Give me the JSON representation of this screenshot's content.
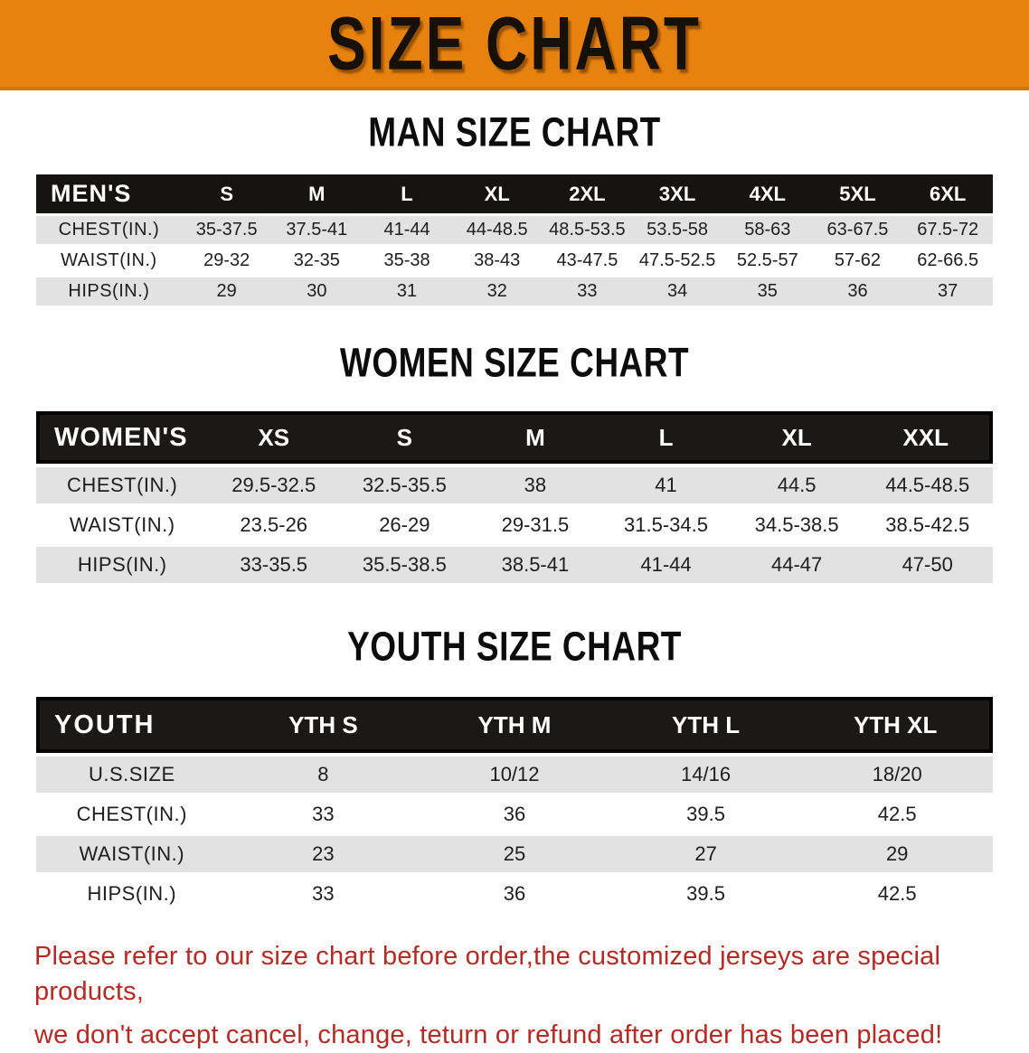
{
  "banner": {
    "title": "SIZE CHART"
  },
  "sections": {
    "men": {
      "heading": "MAN SIZE CHART",
      "table": {
        "header": [
          "MEN'S",
          "S",
          "M",
          "L",
          "XL",
          "2XL",
          "3XL",
          "4XL",
          "5XL",
          "6XL"
        ],
        "rows": [
          [
            "CHEST(IN.)",
            "35-37.5",
            "37.5-41",
            "41-44",
            "44-48.5",
            "48.5-53.5",
            "53.5-58",
            "58-63",
            "63-67.5",
            "67.5-72"
          ],
          [
            "WAIST(IN.)",
            "29-32",
            "32-35",
            "35-38",
            "38-43",
            "43-47.5",
            "47.5-52.5",
            "52.5-57",
            "57-62",
            "62-66.5"
          ],
          [
            "HIPS(IN.)",
            "29",
            "30",
            "31",
            "32",
            "33",
            "34",
            "35",
            "36",
            "37"
          ]
        ]
      }
    },
    "women": {
      "heading": "WOMEN SIZE CHART",
      "table": {
        "header": [
          "WOMEN'S",
          "XS",
          "S",
          "M",
          "L",
          "XL",
          "XXL"
        ],
        "rows": [
          [
            "CHEST(IN.)",
            "29.5-32.5",
            "32.5-35.5",
            "38",
            "41",
            "44.5",
            "44.5-48.5"
          ],
          [
            "WAIST(IN.)",
            "23.5-26",
            "26-29",
            "29-31.5",
            "31.5-34.5",
            "34.5-38.5",
            "38.5-42.5"
          ],
          [
            "HIPS(IN.)",
            "33-35.5",
            "35.5-38.5",
            "38.5-41",
            "41-44",
            "44-47",
            "47-50"
          ]
        ]
      }
    },
    "youth": {
      "heading": "YOUTH SIZE CHART",
      "table": {
        "header": [
          "YOUTH",
          "YTH S",
          "YTH M",
          "YTH L",
          "YTH XL"
        ],
        "rows": [
          [
            "U.S.SIZE",
            "8",
            "10/12",
            "14/16",
            "18/20"
          ],
          [
            "CHEST(IN.)",
            "33",
            "36",
            "39.5",
            "42.5"
          ],
          [
            "WAIST(IN.)",
            "23",
            "25",
            "27",
            "29"
          ],
          [
            "HIPS(IN.)",
            "33",
            "36",
            "39.5",
            "42.5"
          ]
        ]
      }
    }
  },
  "footer": {
    "lines": [
      "Please refer to our size chart before order,the customized jerseys are special products,",
      "we don't accept cancel, change, teturn or refund after order has been placed!"
    ]
  },
  "colors": {
    "banner_bg": "#E8820E",
    "banner_border": "#D0750E",
    "table_header_bg": "#151413",
    "row_alt_bg": "#E2E2E2",
    "disclaimer_text": "#B22B24"
  }
}
